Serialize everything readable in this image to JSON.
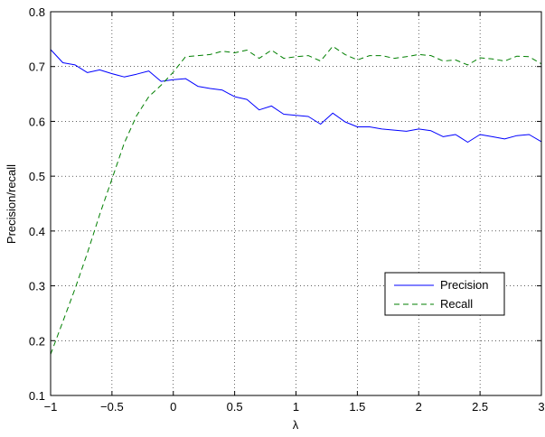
{
  "chart_data": {
    "type": "line",
    "title": "",
    "xlabel": "λ",
    "ylabel": "Precision/recall",
    "xlim": [
      -1,
      3
    ],
    "ylim": [
      0.1,
      0.8
    ],
    "x_ticks": [
      -1,
      -0.5,
      0,
      0.5,
      1,
      1.5,
      2,
      2.5,
      3
    ],
    "x_tick_labels": [
      "−1",
      "−0.5",
      "0",
      "0.5",
      "1",
      "1.5",
      "2",
      "2.5",
      "3"
    ],
    "y_ticks": [
      0.1,
      0.2,
      0.3,
      0.4,
      0.5,
      0.6,
      0.7,
      0.8
    ],
    "y_tick_labels": [
      "0.1",
      "0.2",
      "0.3",
      "0.4",
      "0.5",
      "0.6",
      "0.7",
      "0.8"
    ],
    "grid": true,
    "legend_position": "right",
    "series": [
      {
        "name": "Precision",
        "color": "#0000ff",
        "line_style": "solid",
        "x": [
          -1.0,
          -0.9,
          -0.8,
          -0.7,
          -0.6,
          -0.5,
          -0.4,
          -0.3,
          -0.2,
          -0.1,
          0.0,
          0.1,
          0.2,
          0.3,
          0.4,
          0.5,
          0.6,
          0.7,
          0.8,
          0.9,
          1.0,
          1.1,
          1.2,
          1.3,
          1.4,
          1.5,
          1.6,
          1.7,
          1.8,
          1.9,
          2.0,
          2.1,
          2.2,
          2.3,
          2.4,
          2.5,
          2.6,
          2.7,
          2.8,
          2.9,
          3.0
        ],
        "y": [
          0.731,
          0.707,
          0.703,
          0.689,
          0.694,
          0.687,
          0.681,
          0.686,
          0.692,
          0.673,
          0.676,
          0.678,
          0.664,
          0.66,
          0.657,
          0.645,
          0.64,
          0.621,
          0.628,
          0.613,
          0.611,
          0.609,
          0.595,
          0.615,
          0.599,
          0.59,
          0.59,
          0.586,
          0.584,
          0.582,
          0.586,
          0.583,
          0.572,
          0.576,
          0.562,
          0.576,
          0.572,
          0.568,
          0.574,
          0.576,
          0.563
        ]
      },
      {
        "name": "Recall",
        "color": "#007f00",
        "line_style": "dashed",
        "x": [
          -1.0,
          -0.9,
          -0.8,
          -0.7,
          -0.6,
          -0.5,
          -0.4,
          -0.3,
          -0.2,
          -0.1,
          0.0,
          0.1,
          0.2,
          0.3,
          0.4,
          0.5,
          0.6,
          0.7,
          0.8,
          0.9,
          1.0,
          1.1,
          1.2,
          1.3,
          1.4,
          1.5,
          1.6,
          1.7,
          1.8,
          1.9,
          2.0,
          2.1,
          2.2,
          2.3,
          2.4,
          2.5,
          2.6,
          2.7,
          2.8,
          2.9,
          3.0
        ],
        "y": [
          0.175,
          0.235,
          0.295,
          0.36,
          0.43,
          0.495,
          0.56,
          0.61,
          0.645,
          0.666,
          0.69,
          0.718,
          0.72,
          0.722,
          0.728,
          0.725,
          0.73,
          0.715,
          0.73,
          0.715,
          0.718,
          0.72,
          0.71,
          0.737,
          0.722,
          0.712,
          0.72,
          0.72,
          0.715,
          0.718,
          0.722,
          0.72,
          0.71,
          0.712,
          0.703,
          0.716,
          0.714,
          0.71,
          0.719,
          0.718,
          0.705
        ]
      }
    ]
  }
}
